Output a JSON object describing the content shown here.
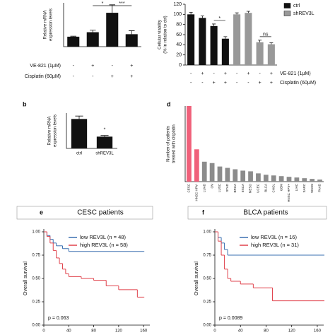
{
  "chart_data": [
    {
      "type": "bar",
      "ylabel": [
        "Relative mRNA",
        "expression levels"
      ],
      "values": [
        1,
        1.45,
        3.4,
        1.25
      ],
      "errors": [
        0.05,
        0.2,
        0.8,
        0.35
      ],
      "color": "#111111",
      "ylim": [
        0,
        4.4
      ],
      "rows": [
        {
          "label": "VE-821 (1μM)",
          "marks": [
            "-",
            "+",
            "-",
            "+"
          ]
        },
        {
          "label": "Cisplatin (60μM)",
          "marks": [
            "-",
            "-",
            "+",
            "+"
          ]
        }
      ],
      "annotations": [
        "*",
        "***"
      ]
    },
    {
      "type": "bar",
      "ylabel": [
        "Cellular viability",
        "(% in relation to ctrl)"
      ],
      "series": [
        {
          "name": "ctrl",
          "color": "#111111",
          "values": [
            100,
            93,
            77,
            52
          ],
          "errors": [
            4,
            4,
            4,
            4
          ]
        },
        {
          "name": "shREV3L",
          "color": "#999999",
          "values": [
            100,
            103,
            45,
            41
          ],
          "errors": [
            3,
            3,
            4,
            3
          ]
        }
      ],
      "ylim": [
        0,
        120
      ],
      "yticks": [
        0,
        20,
        40,
        60,
        80,
        100,
        120
      ],
      "legend": "upper right",
      "rows": [
        {
          "label": "VE-821 (1μM)",
          "marks": [
            "-",
            "+",
            "-",
            "+",
            "-",
            "+",
            "-",
            "+"
          ]
        },
        {
          "label": "Cisplatin (60μM)",
          "marks": [
            "-",
            "-",
            "+",
            "+",
            "-",
            "-",
            "+",
            "+"
          ]
        }
      ],
      "annotations": [
        "*",
        "ns"
      ]
    },
    {
      "type": "bar",
      "label": "b",
      "ylabel": [
        "Relative mRNA",
        "expression levels"
      ],
      "categories": [
        "ctrl",
        "shREV3L"
      ],
      "values": [
        1,
        0.4
      ],
      "errors": [
        0.1,
        0.04
      ],
      "color": "#111111",
      "ylim": [
        0,
        1.2
      ],
      "annotations": [
        "*"
      ]
    },
    {
      "type": "bar",
      "label": "d",
      "ylabel": [
        "Number of patients",
        "treated with cisplatin"
      ],
      "categories": [
        "CESC",
        "HNSC HPV-",
        "LUAD",
        "OV",
        "LUSC",
        "STAD",
        "BRCA",
        "ESCA",
        "MESO",
        "UCEC",
        "BLCA",
        "CHOL",
        "GBM",
        "HNSC HPV+",
        "LIHC",
        "SARC",
        "SKCM",
        "PAAD"
      ],
      "values": [
        110,
        47,
        29,
        27,
        22,
        20,
        18,
        16,
        15,
        12,
        10,
        9,
        8,
        7,
        6,
        5,
        4,
        3
      ],
      "colors": [
        "#f0607a",
        "#f0607a",
        "#8c8c8c",
        "#8c8c8c",
        "#8c8c8c",
        "#8c8c8c",
        "#8c8c8c",
        "#8c8c8c",
        "#8c8c8c",
        "#8c8c8c",
        "#8c8c8c",
        "#8c8c8c",
        "#8c8c8c",
        "#8c8c8c",
        "#8c8c8c",
        "#8c8c8c",
        "#8c8c8c",
        "#8c8c8c"
      ],
      "ylim": [
        0,
        110
      ],
      "rotate_labels": true
    },
    {
      "type": "line",
      "label": "e",
      "title": "CESC patients",
      "ylabel": "Overall survival",
      "xlim": [
        0,
        170
      ],
      "xticks": [
        0,
        40,
        80,
        120,
        160
      ],
      "ylim": [
        0,
        1
      ],
      "yticks": [
        {
          "value": 0,
          "label": "0.00"
        },
        {
          "value": 0.25,
          "label": "0.25"
        },
        {
          "value": 0.5,
          "label": "0.50"
        },
        {
          "value": 0.75,
          "label": "0.75"
        },
        {
          "value": 1,
          "label": "1.00"
        }
      ],
      "series": [
        {
          "name": "low REV3L (n = 48)",
          "color": "#3a6fb0",
          "x": [
            0,
            5,
            10,
            15,
            20,
            30,
            40,
            160
          ],
          "values": [
            1,
            0.96,
            0.92,
            0.88,
            0.85,
            0.82,
            0.79,
            0.79
          ]
        },
        {
          "name": "high REV3L (n = 58)",
          "color": "#e0404a",
          "x": [
            0,
            5,
            10,
            15,
            20,
            25,
            30,
            35,
            40,
            60,
            80,
            100,
            120,
            150,
            160
          ],
          "values": [
            1,
            0.95,
            0.88,
            0.8,
            0.72,
            0.66,
            0.6,
            0.55,
            0.52,
            0.5,
            0.48,
            0.42,
            0.38,
            0.3,
            0.3
          ]
        }
      ],
      "annotation": "p = 0.063"
    },
    {
      "type": "line",
      "label": "f",
      "title": "BLCA patients",
      "ylabel": "Overall survival",
      "xlim": [
        0,
        170
      ],
      "xticks": [
        0,
        40,
        80,
        120,
        160
      ],
      "ylim": [
        0,
        1
      ],
      "yticks": [
        {
          "value": 0,
          "label": "0.00"
        },
        {
          "value": 0.25,
          "label": "0.25"
        },
        {
          "value": 0.5,
          "label": "0.50"
        },
        {
          "value": 0.75,
          "label": "0.75"
        },
        {
          "value": 1,
          "label": "1.00"
        }
      ],
      "series": [
        {
          "name": "low REV3L (n = 16)",
          "color": "#3a6fb0",
          "x": [
            0,
            5,
            10,
            15,
            20,
            170
          ],
          "values": [
            1,
            0.94,
            0.88,
            0.81,
            0.75,
            0.75
          ]
        },
        {
          "name": "high REV3L (n = 31)",
          "color": "#e0404a",
          "x": [
            0,
            5,
            10,
            15,
            20,
            25,
            40,
            60,
            90,
            170
          ],
          "values": [
            1,
            0.9,
            0.75,
            0.6,
            0.5,
            0.47,
            0.44,
            0.4,
            0.26,
            0.26
          ]
        }
      ],
      "annotation": "p = 0.0089"
    }
  ]
}
